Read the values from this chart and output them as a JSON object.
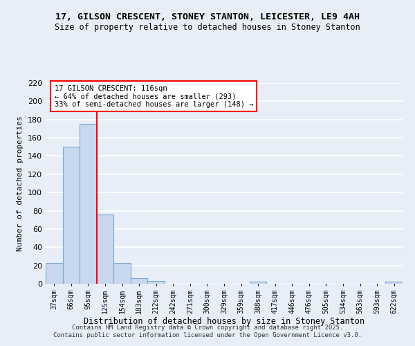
{
  "title1": "17, GILSON CRESCENT, STONEY STANTON, LEICESTER, LE9 4AH",
  "title2": "Size of property relative to detached houses in Stoney Stanton",
  "xlabel": "Distribution of detached houses by size in Stoney Stanton",
  "ylabel": "Number of detached properties",
  "bar_labels": [
    "37sqm",
    "66sqm",
    "95sqm",
    "125sqm",
    "154sqm",
    "183sqm",
    "212sqm",
    "242sqm",
    "271sqm",
    "300sqm",
    "329sqm",
    "359sqm",
    "388sqm",
    "417sqm",
    "446sqm",
    "476sqm",
    "505sqm",
    "534sqm",
    "563sqm",
    "593sqm",
    "622sqm"
  ],
  "bar_values": [
    23,
    150,
    175,
    76,
    23,
    6,
    3,
    0,
    0,
    0,
    0,
    0,
    2,
    0,
    0,
    0,
    0,
    0,
    0,
    0,
    2
  ],
  "bar_color": "#c8d8ee",
  "bar_edge_color": "#7aa8d0",
  "vline_color": "red",
  "vline_position": 2.5,
  "annotation_title": "17 GILSON CRESCENT: 116sqm",
  "annotation_line1": "← 64% of detached houses are smaller (293)",
  "annotation_line2": "33% of semi-detached houses are larger (148) →",
  "annotation_box_color": "white",
  "annotation_box_edge": "red",
  "ylim": [
    0,
    220
  ],
  "yticks": [
    0,
    20,
    40,
    60,
    80,
    100,
    120,
    140,
    160,
    180,
    200,
    220
  ],
  "background_color": "#e8eef8",
  "grid_color": "white",
  "footer1": "Contains HM Land Registry data © Crown copyright and database right 2025.",
  "footer2": "Contains public sector information licensed under the Open Government Licence v3.0."
}
